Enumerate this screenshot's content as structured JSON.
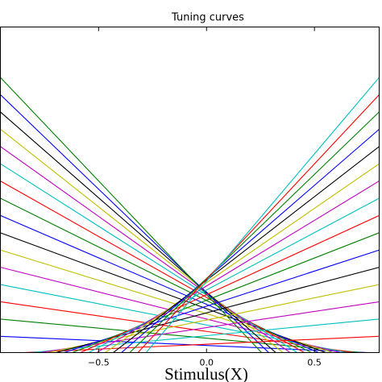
{
  "chart_data": {
    "type": "line",
    "title": "Tuning curves",
    "xlabel": "Stimulus(X)",
    "xlim": [
      -0.955,
      0.8
    ],
    "ylim": [
      0,
      1
    ],
    "xticks": [
      {
        "value": -0.5,
        "label": "−0.5"
      },
      {
        "value": 0,
        "label": "0.0"
      },
      {
        "value": 0.5,
        "label": "0.5"
      }
    ],
    "series": [
      {
        "color": "#0000ff",
        "x": [
          -0.955,
          0.75,
          0.8
        ],
        "values": [
          0.05,
          0,
          0
        ]
      },
      {
        "color": "#008000",
        "x": [
          -0.955,
          0.717,
          0.8
        ],
        "values": [
          0.103,
          0,
          0
        ]
      },
      {
        "color": "#ff0000",
        "x": [
          -0.955,
          0.684,
          0.8
        ],
        "values": [
          0.156,
          0,
          0
        ]
      },
      {
        "color": "#00bfbf",
        "x": [
          -0.955,
          0.651,
          0.8
        ],
        "values": [
          0.209,
          0,
          0
        ]
      },
      {
        "color": "#bf00bf",
        "x": [
          -0.955,
          0.618,
          0.8
        ],
        "values": [
          0.262,
          0,
          0
        ]
      },
      {
        "color": "#bfbf00",
        "x": [
          -0.955,
          0.585,
          0.8
        ],
        "values": [
          0.315,
          0,
          0
        ]
      },
      {
        "color": "#000000",
        "x": [
          -0.955,
          0.552,
          0.8
        ],
        "values": [
          0.368,
          0,
          0
        ]
      },
      {
        "color": "#0000ff",
        "x": [
          -0.955,
          0.519,
          0.8
        ],
        "values": [
          0.421,
          0,
          0
        ]
      },
      {
        "color": "#008000",
        "x": [
          -0.955,
          0.486,
          0.8
        ],
        "values": [
          0.474,
          0,
          0
        ]
      },
      {
        "color": "#ff0000",
        "x": [
          -0.955,
          0.453,
          0.8
        ],
        "values": [
          0.527,
          0,
          0
        ]
      },
      {
        "color": "#00bfbf",
        "x": [
          -0.955,
          0.42,
          0.8
        ],
        "values": [
          0.58,
          0,
          0
        ]
      },
      {
        "color": "#bf00bf",
        "x": [
          -0.955,
          0.387,
          0.8
        ],
        "values": [
          0.633,
          0,
          0
        ]
      },
      {
        "color": "#bfbf00",
        "x": [
          -0.955,
          0.354,
          0.8
        ],
        "values": [
          0.686,
          0,
          0
        ]
      },
      {
        "color": "#000000",
        "x": [
          -0.955,
          0.321,
          0.8
        ],
        "values": [
          0.739,
          0,
          0
        ]
      },
      {
        "color": "#0000ff",
        "x": [
          -0.955,
          0.288,
          0.8
        ],
        "values": [
          0.792,
          0,
          0
        ]
      },
      {
        "color": "#008000",
        "x": [
          -0.955,
          0.255,
          0.8
        ],
        "values": [
          0.845,
          0,
          0
        ]
      },
      {
        "color": "#ff0000",
        "x": [
          -0.955,
          -0.85,
          0.8
        ],
        "values": [
          0,
          0,
          0.05
        ]
      },
      {
        "color": "#00bfbf",
        "x": [
          -0.955,
          -0.812,
          0.8
        ],
        "values": [
          0,
          0,
          0.103
        ]
      },
      {
        "color": "#bf00bf",
        "x": [
          -0.955,
          -0.774,
          0.8
        ],
        "values": [
          0,
          0,
          0.156
        ]
      },
      {
        "color": "#bfbf00",
        "x": [
          -0.955,
          -0.736,
          0.8
        ],
        "values": [
          0,
          0,
          0.209
        ]
      },
      {
        "color": "#000000",
        "x": [
          -0.955,
          -0.698,
          0.8
        ],
        "values": [
          0,
          0,
          0.262
        ]
      },
      {
        "color": "#0000ff",
        "x": [
          -0.955,
          -0.66,
          0.8
        ],
        "values": [
          0,
          0,
          0.315
        ]
      },
      {
        "color": "#008000",
        "x": [
          -0.955,
          -0.622,
          0.8
        ],
        "values": [
          0,
          0,
          0.368
        ]
      },
      {
        "color": "#ff0000",
        "x": [
          -0.955,
          -0.584,
          0.8
        ],
        "values": [
          0,
          0,
          0.421
        ]
      },
      {
        "color": "#00bfbf",
        "x": [
          -0.955,
          -0.546,
          0.8
        ],
        "values": [
          0,
          0,
          0.474
        ]
      },
      {
        "color": "#bf00bf",
        "x": [
          -0.955,
          -0.508,
          0.8
        ],
        "values": [
          0,
          0,
          0.527
        ]
      },
      {
        "color": "#bfbf00",
        "x": [
          -0.955,
          -0.47,
          0.8
        ],
        "values": [
          0,
          0,
          0.58
        ]
      },
      {
        "color": "#000000",
        "x": [
          -0.955,
          -0.432,
          0.8
        ],
        "values": [
          0,
          0,
          0.633
        ]
      },
      {
        "color": "#0000ff",
        "x": [
          -0.955,
          -0.394,
          0.8
        ],
        "values": [
          0,
          0,
          0.686
        ]
      },
      {
        "color": "#008000",
        "x": [
          -0.955,
          -0.356,
          0.8
        ],
        "values": [
          0,
          0,
          0.739
        ]
      },
      {
        "color": "#ff0000",
        "x": [
          -0.955,
          -0.318,
          0.8
        ],
        "values": [
          0,
          0,
          0.792
        ]
      },
      {
        "color": "#00bfbf",
        "x": [
          -0.955,
          -0.28,
          0.8
        ],
        "values": [
          0,
          0,
          0.845
        ]
      }
    ]
  }
}
